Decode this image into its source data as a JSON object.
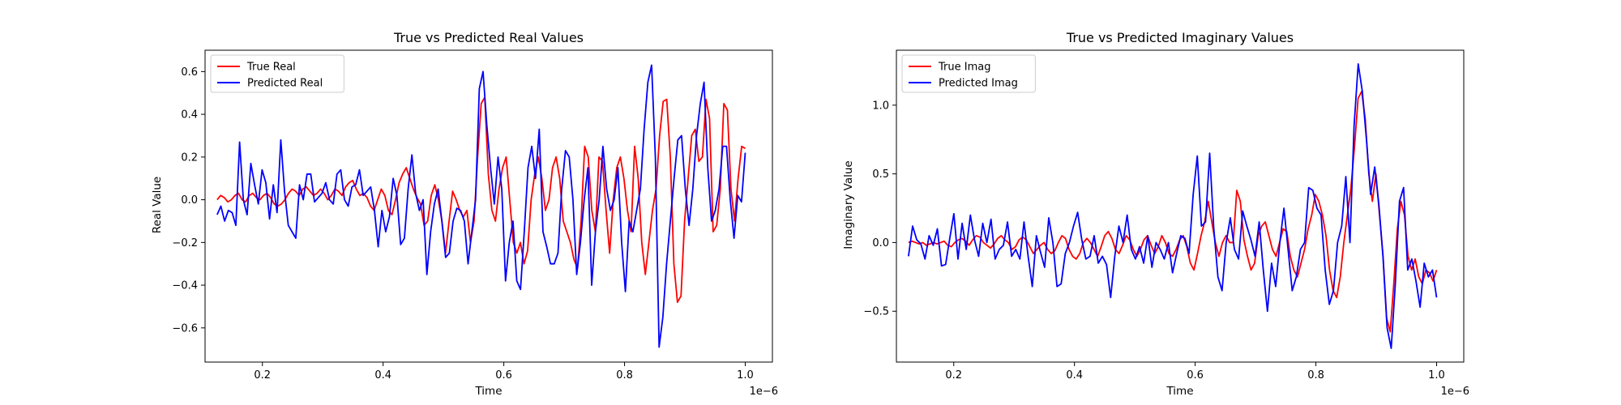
{
  "chart_data": [
    {
      "type": "line",
      "title": "True vs Predicted Real Values",
      "xlabel": "Time",
      "ylabel": "Real Value",
      "x_offset_label": "1e−6",
      "xlim": [
        0.105,
        1.045
      ],
      "ylim": [
        -0.76,
        0.7
      ],
      "x_ticks": [
        0.2,
        0.4,
        0.6,
        0.8,
        1.0
      ],
      "x_tick_labels": [
        "0.2",
        "0.4",
        "0.6",
        "0.8",
        "1.0"
      ],
      "y_ticks": [
        -0.6,
        -0.4,
        -0.2,
        0.0,
        0.2,
        0.4,
        0.6
      ],
      "y_tick_labels": [
        "−0.6",
        "−0.4",
        "−0.2",
        "0.0",
        "0.2",
        "0.4",
        "0.6"
      ],
      "grid": false,
      "legend_position": "upper-left",
      "x_range": [
        0.125,
        1.0
      ],
      "series": [
        {
          "name": "True Real",
          "color": "#ff0000",
          "values": [
            0.0,
            0.02,
            0.01,
            -0.01,
            0.0,
            0.02,
            0.03,
            0.0,
            -0.01,
            0.02,
            0.03,
            0.01,
            0.0,
            0.02,
            0.03,
            0.01,
            -0.02,
            -0.03,
            -0.02,
            0.0,
            0.03,
            0.05,
            0.04,
            0.02,
            0.05,
            0.06,
            0.04,
            0.02,
            0.03,
            0.05,
            0.03,
            0.0,
            0.02,
            0.05,
            0.04,
            0.02,
            0.06,
            0.08,
            0.09,
            0.05,
            0.02,
            0.03,
            0.01,
            -0.03,
            -0.05,
            0.0,
            0.05,
            0.02,
            -0.05,
            -0.07,
            0.0,
            0.08,
            0.12,
            0.15,
            0.1,
            0.05,
            0.01,
            -0.02,
            -0.12,
            -0.1,
            0.02,
            0.07,
            0.0,
            -0.1,
            -0.25,
            -0.1,
            0.04,
            0.0,
            -0.05,
            -0.08,
            -0.05,
            -0.2,
            -0.1,
            0.2,
            0.45,
            0.48,
            0.12,
            -0.05,
            -0.1,
            0.05,
            0.15,
            0.2,
            0.0,
            -0.2,
            -0.25,
            -0.2,
            -0.3,
            -0.24,
            0.0,
            0.12,
            0.2,
            0.1,
            -0.05,
            0.0,
            0.15,
            0.2,
            0.1,
            -0.1,
            -0.15,
            -0.2,
            -0.28,
            -0.32,
            -0.1,
            0.25,
            0.2,
            -0.05,
            -0.15,
            0.2,
            0.18,
            -0.05,
            -0.25,
            0.0,
            0.15,
            0.2,
            0.1,
            -0.05,
            -0.15,
            0.25,
            0.1,
            -0.2,
            -0.35,
            -0.2,
            -0.05,
            0.05,
            0.3,
            0.46,
            0.47,
            0.2,
            -0.3,
            -0.48,
            -0.45,
            -0.1,
            0.1,
            0.3,
            0.33,
            0.18,
            0.2,
            0.47,
            0.38,
            -0.15,
            -0.12,
            0.05,
            0.45,
            0.42,
            0.05,
            -0.1,
            0.1,
            0.25,
            0.24
          ],
          "values_note": "evenly spaced samples over x_range"
        },
        {
          "name": "Predicted Real",
          "color": "#0000ff",
          "values": [
            -0.07,
            -0.03,
            -0.1,
            -0.05,
            -0.06,
            -0.12,
            0.27,
            0.0,
            -0.07,
            0.17,
            0.07,
            -0.02,
            0.14,
            0.08,
            -0.09,
            0.07,
            -0.06,
            0.28,
            0.04,
            -0.12,
            -0.15,
            -0.18,
            0.07,
            0.0,
            0.12,
            0.12,
            -0.01,
            0.01,
            0.03,
            0.08,
            0.0,
            -0.02,
            0.12,
            0.14,
            0.0,
            -0.03,
            0.06,
            0.07,
            0.14,
            0.02,
            0.04,
            0.06,
            -0.05,
            -0.22,
            -0.05,
            -0.15,
            -0.08,
            0.1,
            0.02,
            -0.21,
            -0.18,
            0.05,
            0.21,
            0.03,
            -0.05,
            0.0,
            -0.35,
            -0.15,
            -0.02,
            0.05,
            -0.1,
            -0.27,
            -0.25,
            -0.1,
            -0.04,
            -0.05,
            -0.1,
            -0.3,
            -0.15,
            0.0,
            0.52,
            0.6,
            0.35,
            0.15,
            -0.02,
            0.2,
            0.05,
            -0.38,
            -0.2,
            -0.1,
            -0.38,
            -0.42,
            -0.15,
            0.15,
            0.25,
            0.1,
            0.33,
            -0.15,
            -0.22,
            -0.3,
            -0.3,
            -0.25,
            0.05,
            0.23,
            0.2,
            0.0,
            -0.35,
            -0.2,
            0.0,
            0.15,
            -0.4,
            -0.15,
            0.0,
            0.25,
            0.05,
            -0.05,
            0.0,
            0.15,
            -0.2,
            -0.43,
            -0.1,
            -0.15,
            -0.05,
            0.05,
            0.33,
            0.55,
            0.63,
            0.2,
            -0.69,
            -0.55,
            -0.3,
            -0.1,
            0.1,
            0.28,
            0.3,
            0.05,
            -0.12,
            0.05,
            0.3,
            0.45,
            0.55,
            0.15,
            -0.1,
            -0.05,
            0.05,
            0.25,
            0.25,
            0.0,
            -0.18,
            0.02,
            -0.01,
            0.22
          ],
          "values_note": "evenly spaced samples over x_range"
        }
      ]
    },
    {
      "type": "line",
      "title": "True vs Predicted Imaginary Values",
      "xlabel": "Time",
      "ylabel": "Imaginary Value",
      "x_offset_label": "1e−6",
      "xlim": [
        0.105,
        1.045
      ],
      "ylim": [
        -0.87,
        1.4
      ],
      "x_ticks": [
        0.2,
        0.4,
        0.6,
        0.8,
        1.0
      ],
      "x_tick_labels": [
        "0.2",
        "0.4",
        "0.6",
        "0.8",
        "1.0"
      ],
      "y_ticks": [
        -0.5,
        0.0,
        0.5,
        1.0
      ],
      "y_tick_labels": [
        "−0.5",
        "0.0",
        "0.5",
        "1.0"
      ],
      "grid": false,
      "legend_position": "upper-left",
      "x_range": [
        0.125,
        1.0
      ],
      "series": [
        {
          "name": "True Imag",
          "color": "#ff0000",
          "values": [
            0.0,
            0.01,
            0.0,
            -0.01,
            0.0,
            -0.02,
            -0.01,
            0.0,
            -0.01,
            0.0,
            0.01,
            -0.02,
            -0.03,
            0.0,
            0.02,
            0.03,
            0.01,
            -0.02,
            0.02,
            0.05,
            0.04,
            0.0,
            -0.02,
            -0.04,
            -0.01,
            0.03,
            0.05,
            0.02,
            0.0,
            -0.05,
            -0.03,
            0.02,
            0.04,
            0.02,
            -0.03,
            -0.08,
            -0.05,
            -0.02,
            0.0,
            -0.05,
            -0.08,
            -0.06,
            0.0,
            0.05,
            0.03,
            -0.05,
            -0.1,
            -0.12,
            -0.08,
            0.0,
            0.03,
            0.0,
            -0.05,
            -0.1,
            -0.03,
            0.05,
            0.08,
            0.03,
            -0.05,
            -0.08,
            -0.02,
            0.05,
            0.02,
            -0.05,
            -0.1,
            -0.05,
            0.02,
            0.05,
            -0.02,
            -0.08,
            -0.03,
            0.05,
            0.0,
            -0.08,
            -0.1,
            -0.05,
            0.02,
            0.05,
            -0.03,
            -0.15,
            -0.2,
            -0.08,
            0.05,
            0.15,
            0.3,
            0.15,
            0.0,
            -0.1,
            0.0,
            0.05,
            0.0,
            0.0,
            0.38,
            0.3,
            0.02,
            -0.1,
            -0.2,
            -0.15,
            0.05,
            0.12,
            0.15,
            0.05,
            -0.05,
            -0.1,
            0.0,
            0.1,
            0.08,
            -0.1,
            -0.2,
            -0.25,
            -0.15,
            -0.05,
            0.1,
            0.2,
            0.35,
            0.3,
            0.2,
            0.05,
            -0.2,
            -0.35,
            -0.4,
            -0.25,
            0.0,
            0.2,
            0.4,
            0.7,
            1.05,
            1.1,
            0.9,
            0.5,
            0.3,
            0.5,
            0.2,
            -0.1,
            -0.55,
            -0.65,
            -0.3,
            0.1,
            0.3,
            0.2,
            -0.1,
            -0.2,
            -0.12,
            -0.25,
            -0.3,
            -0.2,
            -0.22,
            -0.28,
            -0.2
          ],
          "values_note": "evenly spaced samples over x_range"
        },
        {
          "name": "Predicted Imag",
          "color": "#0000ff",
          "values": [
            -0.1,
            0.12,
            0.02,
            -0.01,
            -0.12,
            0.05,
            -0.02,
            0.1,
            -0.17,
            -0.16,
            0.03,
            0.21,
            -0.12,
            0.14,
            -0.05,
            0.2,
            0.02,
            -0.1,
            0.14,
            0.0,
            0.17,
            -0.12,
            -0.05,
            -0.02,
            0.15,
            -0.1,
            -0.05,
            -0.12,
            0.15,
            -0.1,
            -0.32,
            0.05,
            -0.07,
            -0.18,
            0.18,
            0.0,
            -0.32,
            -0.3,
            -0.08,
            0.0,
            0.12,
            0.22,
            0.02,
            -0.12,
            -0.1,
            0.05,
            -0.15,
            -0.1,
            -0.16,
            -0.4,
            -0.1,
            0.12,
            0.0,
            0.2,
            -0.05,
            -0.12,
            -0.03,
            -0.15,
            0.05,
            -0.18,
            0.0,
            -0.05,
            -0.12,
            0.0,
            -0.22,
            -0.08,
            0.05,
            0.03,
            -0.08,
            0.35,
            0.63,
            0.12,
            0.15,
            0.65,
            0.1,
            -0.25,
            -0.35,
            0.0,
            0.18,
            -0.05,
            -0.12,
            0.23,
            0.12,
            0.02,
            -0.1,
            0.15,
            -0.2,
            -0.5,
            -0.15,
            -0.32,
            0.0,
            0.25,
            -0.05,
            -0.35,
            -0.25,
            -0.05,
            0.0,
            0.4,
            0.38,
            0.25,
            0.2,
            -0.2,
            -0.45,
            -0.35,
            0.0,
            0.12,
            0.48,
            0.0,
            0.85,
            1.3,
            1.1,
            0.75,
            0.35,
            0.55,
            0.28,
            -0.1,
            -0.62,
            -0.77,
            -0.3,
            0.3,
            0.4,
            -0.2,
            -0.12,
            -0.28,
            -0.47,
            -0.15,
            -0.25,
            -0.2,
            -0.4
          ],
          "values_note": "evenly spaced samples over x_range"
        }
      ]
    }
  ]
}
